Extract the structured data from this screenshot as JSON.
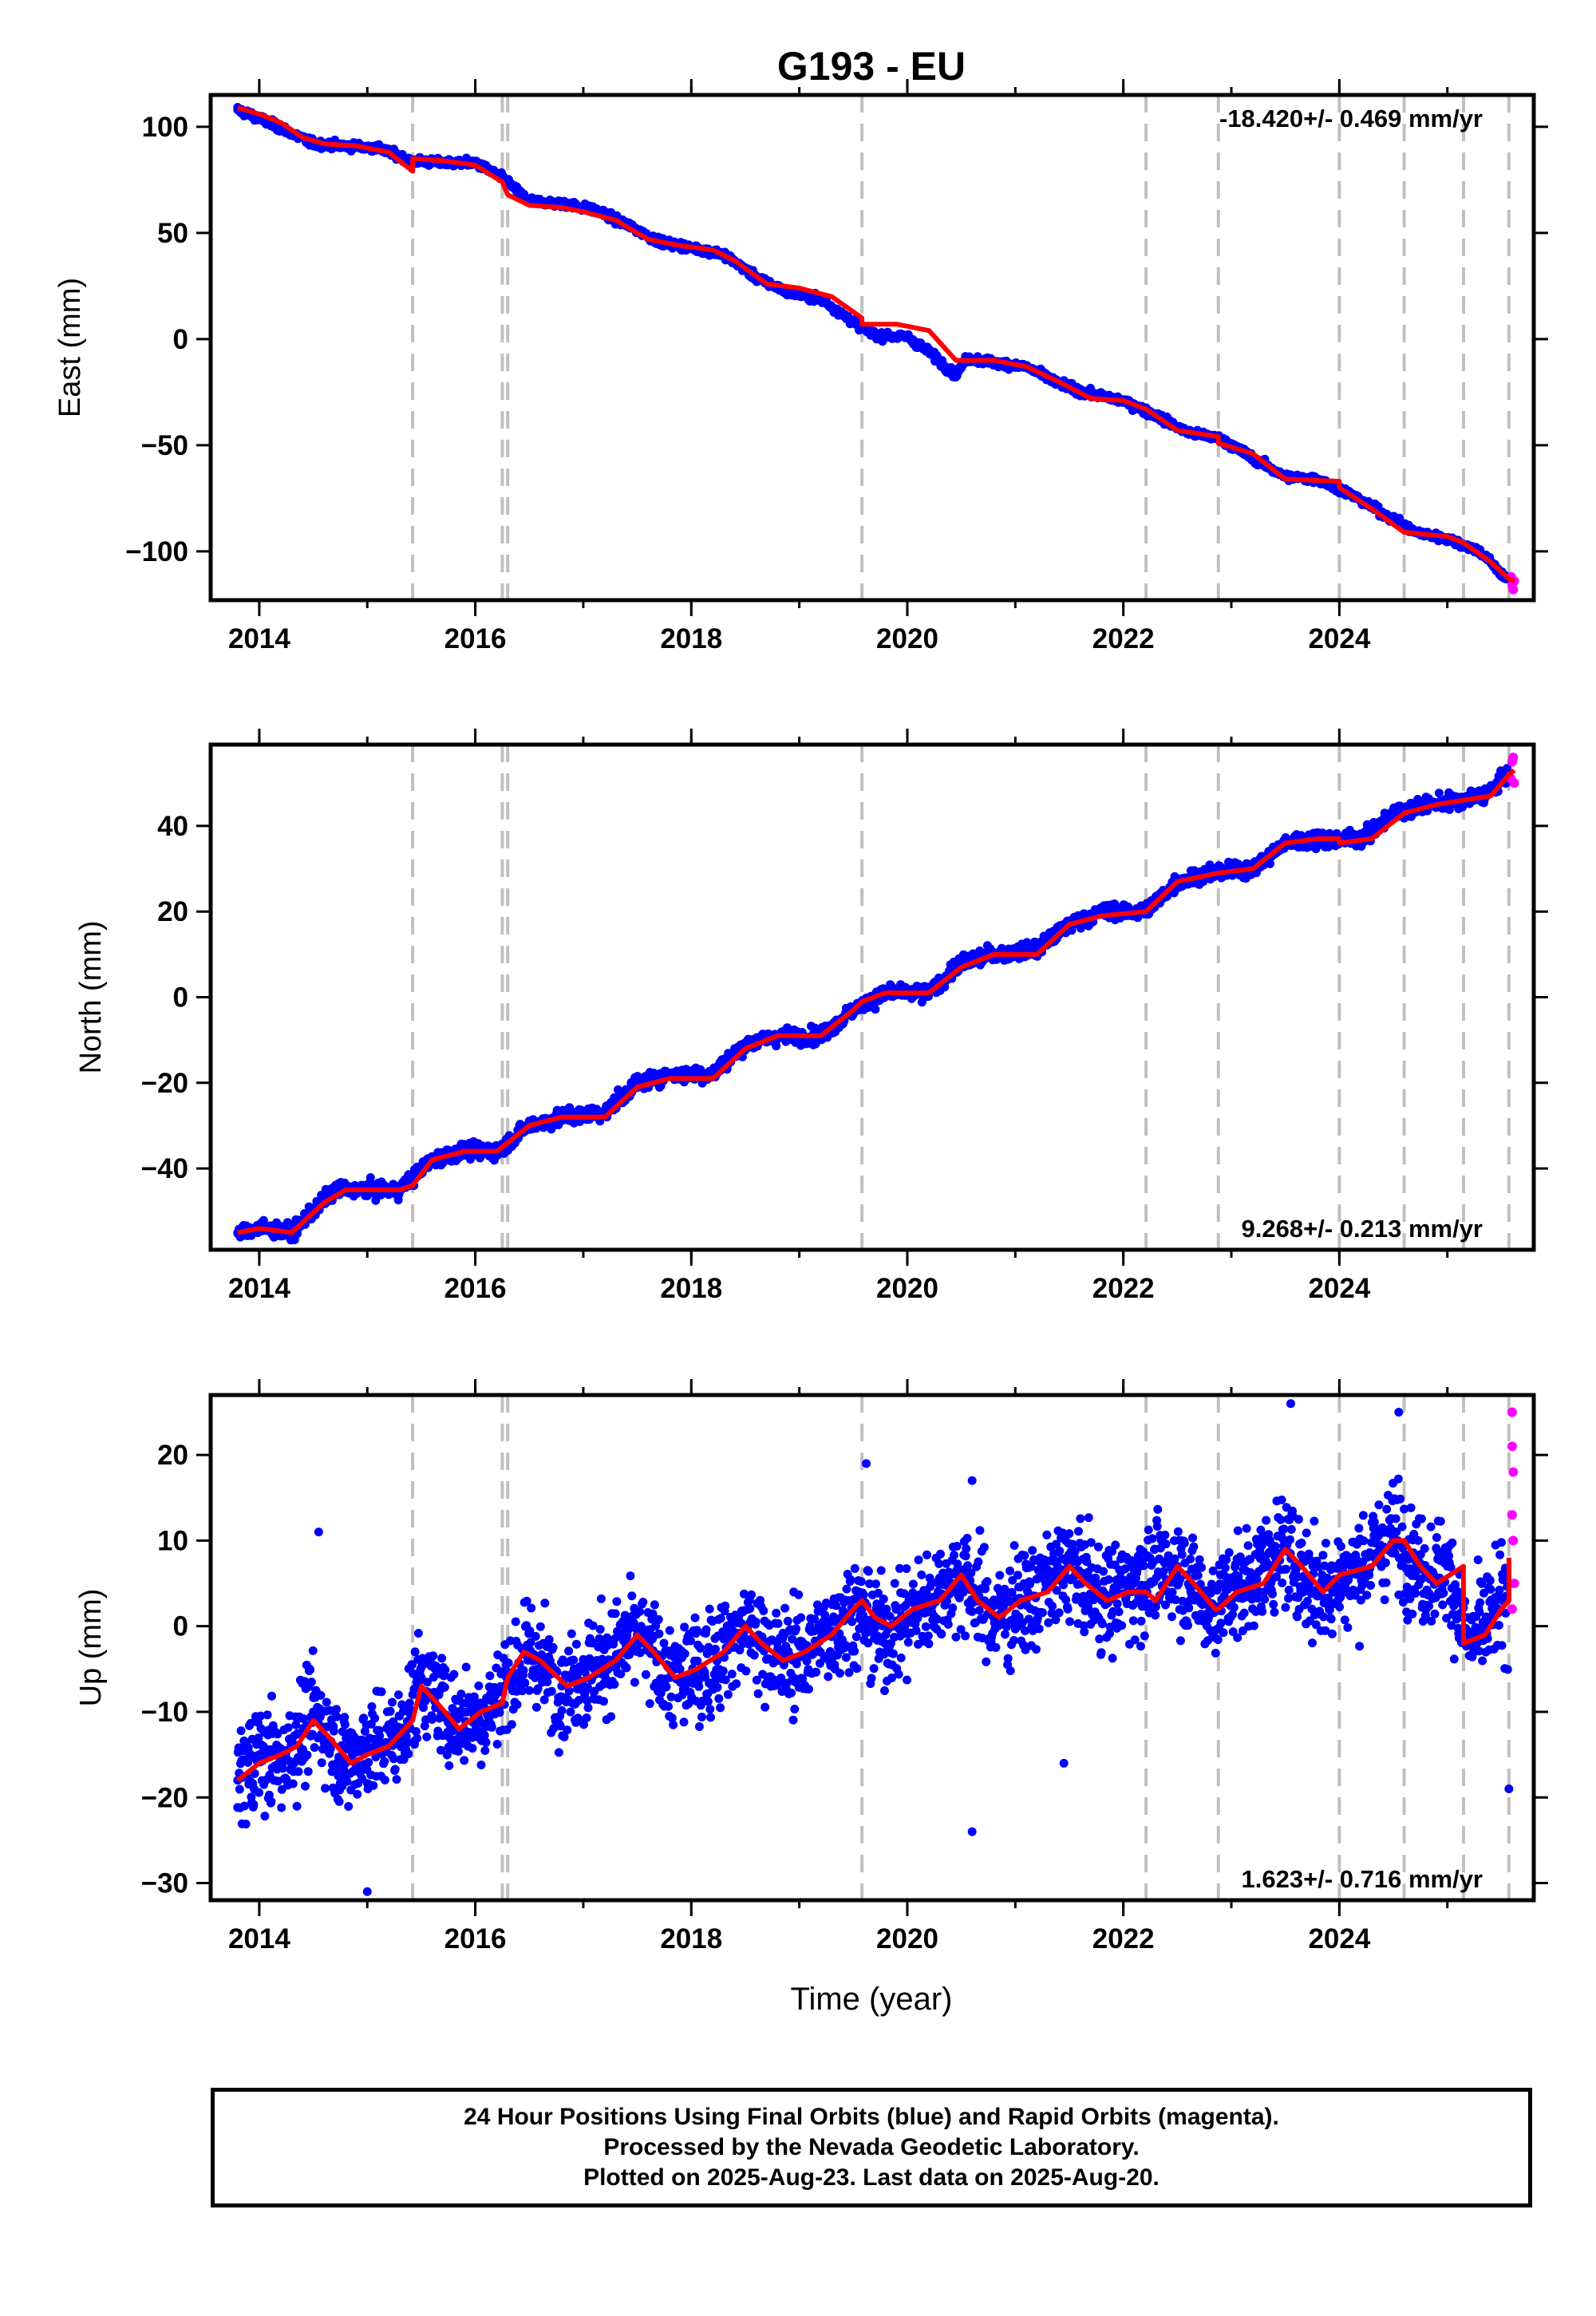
{
  "title": "G193 - EU",
  "x_axis_label": "Time (year)",
  "footer": {
    "line1": "24 Hour Positions Using Final Orbits (blue) and Rapid Orbits (magenta).",
    "line2": "Processed by the Nevada Geodetic Laboratory.",
    "line3": "Plotted on 2025-Aug-23. Last data on 2025-Aug-20."
  },
  "colors": {
    "final": "#0000ff",
    "rapid": "#ff00ff",
    "model": "#ff0000",
    "events": "#c0c0c0"
  },
  "chart_data": [
    {
      "type": "scatter",
      "ylabel": "East (mm)",
      "rate_text": "-18.420+/- 0.469 mm/yr",
      "rate_position": "top-right",
      "xlim": [
        2013.55,
        2025.8
      ],
      "ylim": [
        -123,
        115
      ],
      "xticks": [
        2014,
        2016,
        2018,
        2020,
        2022,
        2024
      ],
      "xtick_labels": [
        "2014",
        "2016",
        "2018",
        "2020",
        "2022",
        "2024"
      ],
      "yticks": [
        -100,
        -50,
        0,
        50,
        100
      ],
      "ytick_labels": [
        "−100",
        "−50",
        "0",
        "50",
        "100"
      ],
      "event_lines": [
        2015.42,
        2016.25,
        2016.3,
        2019.58,
        2022.21,
        2022.88,
        2024.0,
        2024.6,
        2025.15,
        2025.57
      ],
      "final_series": [
        [
          2013.8,
          108
        ],
        [
          2014.0,
          104
        ],
        [
          2014.3,
          97
        ],
        [
          2014.5,
          92
        ],
        [
          2014.8,
          91
        ],
        [
          2015.1,
          90
        ],
        [
          2015.4,
          84
        ],
        [
          2015.7,
          83
        ],
        [
          2016.0,
          83
        ],
        [
          2016.25,
          76
        ],
        [
          2016.5,
          65
        ],
        [
          2016.8,
          64
        ],
        [
          2017.1,
          61
        ],
        [
          2017.4,
          54
        ],
        [
          2017.7,
          46
        ],
        [
          2018.0,
          43
        ],
        [
          2018.3,
          40
        ],
        [
          2018.6,
          29
        ],
        [
          2018.9,
          22
        ],
        [
          2019.2,
          19
        ],
        [
          2019.5,
          8
        ],
        [
          2019.7,
          2
        ],
        [
          2020.0,
          1
        ],
        [
          2020.2,
          -6
        ],
        [
          2020.45,
          -17
        ],
        [
          2020.55,
          -9
        ],
        [
          2020.8,
          -11
        ],
        [
          2021.1,
          -13
        ],
        [
          2021.4,
          -21
        ],
        [
          2021.7,
          -26
        ],
        [
          2022.0,
          -29
        ],
        [
          2022.3,
          -36
        ],
        [
          2022.6,
          -44
        ],
        [
          2022.9,
          -47
        ],
        [
          2023.2,
          -56
        ],
        [
          2023.5,
          -65
        ],
        [
          2023.8,
          -66
        ],
        [
          2024.1,
          -73
        ],
        [
          2024.4,
          -82
        ],
        [
          2024.7,
          -91
        ],
        [
          2025.0,
          -94
        ],
        [
          2025.3,
          -100
        ],
        [
          2025.55,
          -113
        ]
      ],
      "rapid_series": [
        [
          2025.59,
          -112
        ],
        [
          2025.6,
          -116
        ],
        [
          2025.61,
          -118
        ],
        [
          2025.62,
          -114
        ]
      ],
      "model_series": [
        [
          2013.8,
          109
        ],
        [
          2014.0,
          106
        ],
        [
          2014.2,
          102
        ],
        [
          2014.4,
          95
        ],
        [
          2014.6,
          92
        ],
        [
          2014.9,
          91
        ],
        [
          2015.2,
          88
        ],
        [
          2015.42,
          79
        ],
        [
          2015.42,
          85
        ],
        [
          2015.7,
          84
        ],
        [
          2016.0,
          82
        ],
        [
          2016.25,
          74
        ],
        [
          2016.3,
          68
        ],
        [
          2016.5,
          63
        ],
        [
          2016.8,
          62
        ],
        [
          2017.0,
          60
        ],
        [
          2017.3,
          56
        ],
        [
          2017.6,
          47
        ],
        [
          2017.9,
          44
        ],
        [
          2018.2,
          42
        ],
        [
          2018.4,
          37
        ],
        [
          2018.7,
          26
        ],
        [
          2019.0,
          24
        ],
        [
          2019.3,
          20
        ],
        [
          2019.58,
          10
        ],
        [
          2019.58,
          7
        ],
        [
          2019.9,
          7
        ],
        [
          2020.2,
          4
        ],
        [
          2020.45,
          -10
        ],
        [
          2020.8,
          -10
        ],
        [
          2021.1,
          -13
        ],
        [
          2021.4,
          -20
        ],
        [
          2021.7,
          -28
        ],
        [
          2022.0,
          -29
        ],
        [
          2022.21,
          -33
        ],
        [
          2022.5,
          -43
        ],
        [
          2022.88,
          -46
        ],
        [
          2022.88,
          -49
        ],
        [
          2023.2,
          -54
        ],
        [
          2023.5,
          -66
        ],
        [
          2024.0,
          -67
        ],
        [
          2024.0,
          -70
        ],
        [
          2024.3,
          -80
        ],
        [
          2024.6,
          -91
        ],
        [
          2025.0,
          -93
        ],
        [
          2025.15,
          -96
        ],
        [
          2025.4,
          -105
        ],
        [
          2025.57,
          -113
        ],
        [
          2025.62,
          -114
        ]
      ]
    },
    {
      "type": "scatter",
      "ylabel": "North (mm)",
      "rate_text": "9.268+/- 0.213 mm/yr",
      "rate_position": "bottom-right",
      "xlim": [
        2013.55,
        2025.8
      ],
      "ylim": [
        -59,
        59
      ],
      "xticks": [
        2014,
        2016,
        2018,
        2020,
        2022,
        2024
      ],
      "xtick_labels": [
        "2014",
        "2016",
        "2018",
        "2020",
        "2022",
        "2024"
      ],
      "yticks": [
        -40,
        -20,
        0,
        20,
        40
      ],
      "ytick_labels": [
        "−40",
        "−20",
        "0",
        "20",
        "40"
      ],
      "event_lines": [
        2015.42,
        2016.25,
        2016.3,
        2019.58,
        2022.21,
        2022.88,
        2024.0,
        2024.6,
        2025.15,
        2025.57
      ],
      "final_series": [
        [
          2013.8,
          -55
        ],
        [
          2014.0,
          -54
        ],
        [
          2014.3,
          -55
        ],
        [
          2014.5,
          -50
        ],
        [
          2014.7,
          -45
        ],
        [
          2015.0,
          -45
        ],
        [
          2015.3,
          -45
        ],
        [
          2015.6,
          -38
        ],
        [
          2015.9,
          -36
        ],
        [
          2016.2,
          -36
        ],
        [
          2016.5,
          -30
        ],
        [
          2016.8,
          -28
        ],
        [
          2017.2,
          -27
        ],
        [
          2017.5,
          -20
        ],
        [
          2017.8,
          -18
        ],
        [
          2018.2,
          -18
        ],
        [
          2018.5,
          -11
        ],
        [
          2018.8,
          -9
        ],
        [
          2019.2,
          -9
        ],
        [
          2019.5,
          -3
        ],
        [
          2019.8,
          1
        ],
        [
          2020.2,
          1
        ],
        [
          2020.5,
          8
        ],
        [
          2020.8,
          10
        ],
        [
          2021.2,
          11
        ],
        [
          2021.5,
          17
        ],
        [
          2021.8,
          20
        ],
        [
          2022.2,
          20
        ],
        [
          2022.5,
          27
        ],
        [
          2022.8,
          29
        ],
        [
          2023.2,
          30
        ],
        [
          2023.5,
          36
        ],
        [
          2023.8,
          37
        ],
        [
          2024.2,
          37
        ],
        [
          2024.5,
          43
        ],
        [
          2024.8,
          45
        ],
        [
          2025.2,
          46
        ],
        [
          2025.4,
          48
        ],
        [
          2025.55,
          52
        ]
      ],
      "rapid_series": [
        [
          2025.59,
          51
        ],
        [
          2025.6,
          55
        ],
        [
          2025.61,
          56
        ],
        [
          2025.62,
          50
        ]
      ],
      "model_series": [
        [
          2013.8,
          -55
        ],
        [
          2014.0,
          -54
        ],
        [
          2014.3,
          -55
        ],
        [
          2014.6,
          -48
        ],
        [
          2014.8,
          -45
        ],
        [
          2015.1,
          -45
        ],
        [
          2015.3,
          -45
        ],
        [
          2015.42,
          -44
        ],
        [
          2015.6,
          -38
        ],
        [
          2015.9,
          -36
        ],
        [
          2016.2,
          -36
        ],
        [
          2016.5,
          -30
        ],
        [
          2016.8,
          -28
        ],
        [
          2017.2,
          -28
        ],
        [
          2017.5,
          -21
        ],
        [
          2017.8,
          -19
        ],
        [
          2018.2,
          -19
        ],
        [
          2018.5,
          -12
        ],
        [
          2018.8,
          -9
        ],
        [
          2019.2,
          -9
        ],
        [
          2019.5,
          -3
        ],
        [
          2019.58,
          -1
        ],
        [
          2019.8,
          1
        ],
        [
          2020.2,
          1
        ],
        [
          2020.5,
          7
        ],
        [
          2020.8,
          10
        ],
        [
          2021.2,
          10
        ],
        [
          2021.5,
          17
        ],
        [
          2021.8,
          19
        ],
        [
          2022.21,
          20
        ],
        [
          2022.5,
          27
        ],
        [
          2022.88,
          29
        ],
        [
          2023.2,
          30
        ],
        [
          2023.5,
          36
        ],
        [
          2023.8,
          37
        ],
        [
          2024.0,
          37
        ],
        [
          2024.0,
          36
        ],
        [
          2024.3,
          37
        ],
        [
          2024.6,
          43
        ],
        [
          2024.9,
          45
        ],
        [
          2025.15,
          46
        ],
        [
          2025.4,
          47
        ],
        [
          2025.57,
          52
        ],
        [
          2025.62,
          53
        ]
      ]
    },
    {
      "type": "scatter",
      "ylabel": "Up (mm)",
      "rate_text": "1.623+/- 0.716 mm/yr",
      "rate_position": "bottom-right",
      "xlim": [
        2013.55,
        2025.8
      ],
      "ylim": [
        -32,
        27
      ],
      "xticks": [
        2014,
        2016,
        2018,
        2020,
        2022,
        2024
      ],
      "xtick_labels": [
        "2014",
        "2016",
        "2018",
        "2020",
        "2022",
        "2024"
      ],
      "yticks": [
        -30,
        -20,
        -10,
        0,
        10,
        20
      ],
      "ytick_labels": [
        "−30",
        "−20",
        "−10",
        "0",
        "10",
        "20"
      ],
      "event_lines": [
        2015.42,
        2016.25,
        2016.3,
        2019.58,
        2022.21,
        2022.88,
        2024.0,
        2024.6,
        2025.15,
        2025.57
      ],
      "final_series": [
        [
          2013.8,
          -18
        ],
        [
          2014.0,
          -15
        ],
        [
          2014.2,
          -16
        ],
        [
          2014.5,
          -10
        ],
        [
          2014.8,
          -16
        ],
        [
          2015.0,
          -14
        ],
        [
          2015.3,
          -13
        ],
        [
          2015.5,
          -6
        ],
        [
          2015.8,
          -11
        ],
        [
          2016.1,
          -10
        ],
        [
          2016.5,
          -3
        ],
        [
          2016.8,
          -7
        ],
        [
          2017.1,
          -5
        ],
        [
          2017.5,
          -1
        ],
        [
          2017.8,
          -6
        ],
        [
          2018.1,
          -5
        ],
        [
          2018.5,
          0
        ],
        [
          2018.8,
          -4
        ],
        [
          2019.1,
          -3
        ],
        [
          2019.5,
          2
        ],
        [
          2019.8,
          -1
        ],
        [
          2020.1,
          2
        ],
        [
          2020.5,
          6
        ],
        [
          2020.8,
          1
        ],
        [
          2021.1,
          3
        ],
        [
          2021.5,
          7
        ],
        [
          2021.8,
          3
        ],
        [
          2022.1,
          5
        ],
        [
          2022.5,
          7
        ],
        [
          2022.8,
          2
        ],
        [
          2023.1,
          5
        ],
        [
          2023.5,
          9
        ],
        [
          2023.8,
          4
        ],
        [
          2024.1,
          6
        ],
        [
          2024.5,
          11
        ],
        [
          2024.8,
          6
        ],
        [
          2025.0,
          7
        ],
        [
          2025.2,
          -2
        ],
        [
          2025.4,
          1
        ],
        [
          2025.55,
          3
        ],
        [
          2014.55,
          11
        ],
        [
          2020.6,
          17
        ],
        [
          2020.6,
          -24
        ],
        [
          2021.45,
          -16
        ],
        [
          2023.55,
          26
        ],
        [
          2024.55,
          25
        ],
        [
          2015.0,
          -31
        ],
        [
          2019.62,
          19
        ],
        [
          2025.57,
          -19
        ]
      ],
      "rapid_series": [
        [
          2025.6,
          25
        ],
        [
          2025.6,
          21
        ],
        [
          2025.61,
          18
        ],
        [
          2025.6,
          13
        ],
        [
          2025.61,
          10
        ],
        [
          2025.62,
          5
        ],
        [
          2025.6,
          2
        ]
      ],
      "model_series": [
        [
          2013.8,
          -18
        ],
        [
          2014.0,
          -16
        ],
        [
          2014.2,
          -15
        ],
        [
          2014.35,
          -14
        ],
        [
          2014.5,
          -11
        ],
        [
          2014.65,
          -13
        ],
        [
          2014.85,
          -16
        ],
        [
          2015.0,
          -15
        ],
        [
          2015.2,
          -14
        ],
        [
          2015.42,
          -11
        ],
        [
          2015.5,
          -7
        ],
        [
          2015.65,
          -9
        ],
        [
          2015.85,
          -12
        ],
        [
          2016.05,
          -10
        ],
        [
          2016.25,
          -9
        ],
        [
          2016.3,
          -6
        ],
        [
          2016.45,
          -3
        ],
        [
          2016.6,
          -4
        ],
        [
          2016.85,
          -7
        ],
        [
          2017.05,
          -6
        ],
        [
          2017.3,
          -4
        ],
        [
          2017.5,
          -1
        ],
        [
          2017.65,
          -3
        ],
        [
          2017.85,
          -6
        ],
        [
          2018.05,
          -5
        ],
        [
          2018.3,
          -3
        ],
        [
          2018.5,
          0
        ],
        [
          2018.65,
          -2
        ],
        [
          2018.85,
          -4
        ],
        [
          2019.05,
          -3
        ],
        [
          2019.3,
          -1
        ],
        [
          2019.5,
          2
        ],
        [
          2019.58,
          3
        ],
        [
          2019.7,
          1
        ],
        [
          2019.85,
          0
        ],
        [
          2020.05,
          2
        ],
        [
          2020.3,
          3
        ],
        [
          2020.5,
          6
        ],
        [
          2020.65,
          3
        ],
        [
          2020.85,
          1
        ],
        [
          2021.05,
          3
        ],
        [
          2021.3,
          4
        ],
        [
          2021.5,
          7
        ],
        [
          2021.65,
          5
        ],
        [
          2021.85,
          3
        ],
        [
          2022.05,
          4
        ],
        [
          2022.21,
          4
        ],
        [
          2022.3,
          3
        ],
        [
          2022.5,
          7
        ],
        [
          2022.65,
          5
        ],
        [
          2022.85,
          2
        ],
        [
          2022.88,
          2
        ],
        [
          2023.05,
          4
        ],
        [
          2023.3,
          5
        ],
        [
          2023.5,
          9
        ],
        [
          2023.65,
          7
        ],
        [
          2023.85,
          4
        ],
        [
          2024.0,
          6
        ],
        [
          2024.3,
          7
        ],
        [
          2024.5,
          10
        ],
        [
          2024.6,
          10
        ],
        [
          2024.75,
          7
        ],
        [
          2024.9,
          5
        ],
        [
          2025.15,
          7
        ],
        [
          2025.15,
          -2
        ],
        [
          2025.35,
          -1
        ],
        [
          2025.5,
          2
        ],
        [
          2025.57,
          3
        ],
        [
          2025.57,
          8
        ]
      ]
    }
  ]
}
